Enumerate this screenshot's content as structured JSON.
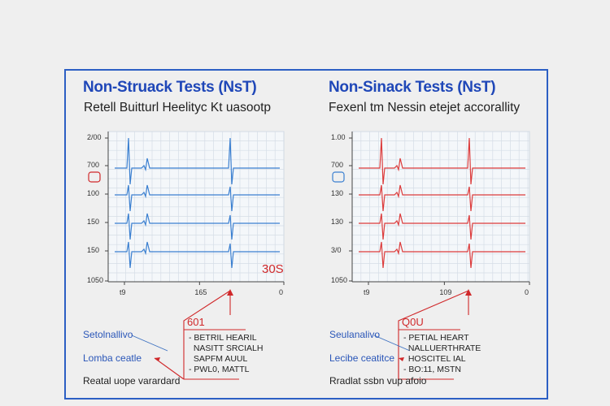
{
  "panels": [
    {
      "title": "Non-Struack Tests (NsT)",
      "subtitle": "Retell Buitturl Heelityc Kt uasootp",
      "duration_label": "30S",
      "callout_heading": "601",
      "callout_lines": [
        "- BETRIL HEARIL",
        "  NASITT SRCIALH",
        "  SAPFM AUUL",
        "- PWL0, MATTL"
      ],
      "notes": [
        "Setolnallivo",
        "Lomba ceatle",
        "Reatal uope varardard"
      ]
    },
    {
      "title": "Non-Sinack Tests (NsT)",
      "subtitle": "Fexenl tm Nessin etejet accorallity",
      "duration_label": "",
      "callout_heading": "Q0U",
      "callout_lines": [
        "- PETIAL HEART",
        "  NALLUERTHRATE",
        "  HOSCITEL IAL",
        "- BO:11, MSTN"
      ],
      "notes": [
        "Seulanalivo",
        "Lecibe ceatitce",
        "Rradlat ssbn vup afoio"
      ]
    }
  ],
  "chart_data": [
    {
      "type": "line",
      "trace_color": "#3a7fd0",
      "y_tick_labels": [
        "2/00",
        "700",
        "100",
        "150",
        "150",
        "1050"
      ],
      "x_tick_labels": [
        "t9",
        "165",
        "0"
      ],
      "grid": true,
      "beats_per_strip": 2,
      "strips": 4,
      "marker_color": "#d0282a"
    },
    {
      "type": "line",
      "trace_color": "#dc3b3b",
      "y_tick_labels": [
        "1.00",
        "700",
        "130",
        "130",
        "3/0",
        "1050"
      ],
      "x_tick_labels": [
        "t9",
        "109",
        "0"
      ],
      "grid": true,
      "beats_per_strip": 2,
      "strips": 4,
      "marker_color": "#3a7fd0"
    }
  ],
  "colors": {
    "frame": "#2c5fc4",
    "title": "#1f47b8",
    "accent_red": "#d0282a"
  }
}
